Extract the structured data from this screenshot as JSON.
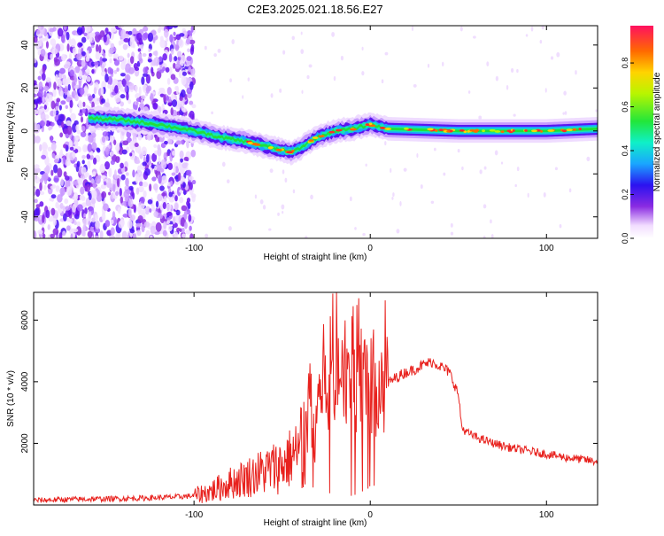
{
  "title": "C2E3.2025.021.18.56.E27",
  "chart_data": [
    {
      "type": "heatmap",
      "xlabel": "Height of straight line (km)",
      "ylabel": "Frequency (Hz)",
      "xlim": [
        -191,
        129
      ],
      "ylim": [
        -50,
        49
      ],
      "xticks": [
        -100,
        0,
        100
      ],
      "yticks": [
        -40,
        -20,
        0,
        20,
        40
      ],
      "colorbar_label": "Normalized spectral amplitude",
      "colorbar_range": [
        0.0,
        0.97
      ],
      "colorbar_ticks": [
        0.0,
        0.2,
        0.4,
        0.6,
        0.8
      ],
      "colormap": "rainbow (violet to red)",
      "trace": {
        "x": [
          -160,
          -140,
          -120,
          -100,
          -85,
          -70,
          -55,
          -45,
          -40,
          -30,
          -20,
          -10,
          0,
          10,
          50,
          100,
          129
        ],
        "y": [
          6,
          5,
          3,
          0,
          -3,
          -5,
          -8,
          -10,
          -8,
          -3,
          0,
          1,
          3,
          1,
          0,
          0,
          1
        ]
      },
      "noise_region_x": [
        -191,
        -100
      ]
    },
    {
      "type": "line",
      "xlabel": "Height of straight line (km)",
      "ylabel": "SNR (10 * v/v)",
      "xlim": [
        -191,
        129
      ],
      "ylim": [
        0,
        6900
      ],
      "xticks": [
        -100,
        0,
        100
      ],
      "yticks": [
        2000,
        4000,
        6000
      ],
      "color": "#e8221e",
      "x": [
        -191,
        -170,
        -150,
        -130,
        -110,
        -100,
        -90,
        -80,
        -70,
        -60,
        -50,
        -40,
        -35,
        -30,
        -25,
        -20,
        -15,
        -10,
        -5,
        0,
        5,
        10,
        15,
        20,
        25,
        30,
        35,
        40,
        45,
        50,
        52,
        55,
        60,
        70,
        80,
        90,
        100,
        110,
        120,
        129
      ],
      "y": [
        150,
        180,
        200,
        220,
        260,
        300,
        450,
        700,
        900,
        1100,
        1300,
        1800,
        2600,
        3500,
        4200,
        4600,
        4400,
        4300,
        4200,
        3900,
        4000,
        3950,
        4150,
        4300,
        4400,
        4550,
        4650,
        4500,
        4300,
        3600,
        2500,
        2350,
        2200,
        2000,
        1850,
        1750,
        1650,
        1550,
        1480,
        1400
      ]
    }
  ]
}
